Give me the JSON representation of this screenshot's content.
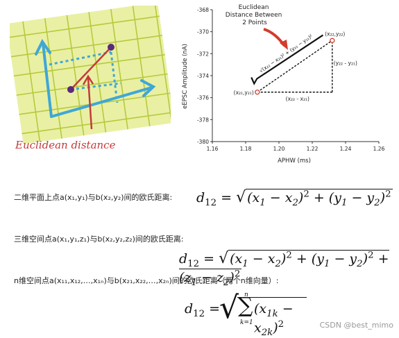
{
  "illustration": {
    "caption": "Euclidean distance",
    "colors": {
      "paper": "#e9f0a3",
      "grid": "#b6c93d",
      "axis": "#3fa7d6",
      "line": "#c33a3a",
      "point": "#5a2a7a"
    }
  },
  "chart": {
    "annotation": "Euclidean\nDistance Between\n2 Points",
    "formula": "√(x₂₂ − x₂₁)² + (y₂₂ − y₂₁)²",
    "point1_label": "(x₂₁,y₂₁)",
    "point2_label": "(x₂₂,y₂₂)",
    "dx_label": "(x₂₂ - x₂₁)",
    "dy_label": "(y₂₂ - y₂₁)"
  },
  "chart_data": {
    "type": "scatter",
    "xlabel": "APHW (ms)",
    "ylabel": "eEPSC Amplitude (nA)",
    "xlim": [
      1.16,
      1.26
    ],
    "ylim": [
      -380,
      -368
    ],
    "xticks": [
      "1.16",
      "1.18",
      "1.20",
      "1.22",
      "1.24",
      "1.26"
    ],
    "yticks": [
      "-368",
      "-370",
      "-372",
      "-374",
      "-376",
      "-378",
      "-380"
    ],
    "series": [
      {
        "x": [
          1.187,
          1.232
        ],
        "y": [
          -375.5,
          -370.8
        ]
      }
    ]
  },
  "text": {
    "line1": "二维平面上点a(x₁,y₁)与b(x₂,y₂)间的欧氏距离:",
    "line2": "三维空间点a(x₁,y₁,z₁)与b(x₂,y₂,z₂)间的欧氏距离:",
    "line3": "n维空间点a(x₁₁,x₁₂,…,x₁ₙ)与b(x₂₁,x₂₂,…,x₂ₙ)间的欧氏距离（两个n维向量）:"
  },
  "watermark": "CSDN @best_mimo"
}
